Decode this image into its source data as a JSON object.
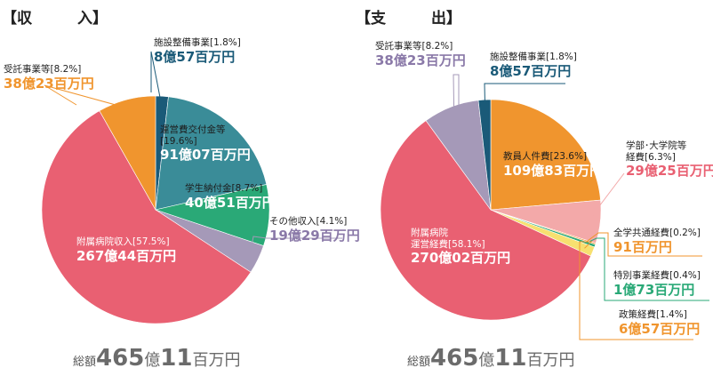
{
  "chart_data": [
    {
      "type": "pie",
      "title": "【収　　　入】",
      "total": {
        "prefix": "総額",
        "amount": "465",
        "unit1": "億",
        "amount2": "11",
        "unit2": "百万円"
      },
      "slices": [
        {
          "key": "shisetsu",
          "name": "施設整備事業[1.8%]",
          "percent": 1.8,
          "value_oku": 8,
          "value_man": 57,
          "value_text": "8億57百万円",
          "color": "#1a5a78"
        },
        {
          "key": "unei",
          "name": "運営費交付金等\n[19.6%]",
          "percent": 19.6,
          "value_oku": 91,
          "value_man": 7,
          "value_text": "91億07百万円",
          "color": "#3a8c98"
        },
        {
          "key": "gakusei",
          "name": "学生納付金[8.7%]",
          "percent": 8.7,
          "value_oku": 40,
          "value_man": 51,
          "value_text": "40億51百万円",
          "color": "#2aa977"
        },
        {
          "key": "sonota",
          "name": "その他収入[4.1%]",
          "percent": 4.1,
          "value_oku": 19,
          "value_man": 29,
          "value_text": "19億29百万円",
          "color": "#a599b8"
        },
        {
          "key": "fuzoku",
          "name": "附属病院収入[57.5%]",
          "percent": 57.5,
          "value_oku": 267,
          "value_man": 44,
          "value_text": "267億44百万円",
          "color": "#e96072"
        },
        {
          "key": "jutaku",
          "name": "受託事業等[8.2%]",
          "percent": 8.2,
          "value_oku": 38,
          "value_man": 23,
          "value_text": "38億23百万円",
          "color": "#f0952e"
        }
      ]
    },
    {
      "type": "pie",
      "title": "【支　　　出】",
      "total": {
        "prefix": "総額",
        "amount": "465",
        "unit1": "億",
        "amount2": "11",
        "unit2": "百万円"
      },
      "slices": [
        {
          "key": "kyoin",
          "name": "教員人件費[23.6%]",
          "percent": 23.6,
          "value_oku": 109,
          "value_man": 83,
          "value_text": "109億83百万円",
          "color": "#f0952e"
        },
        {
          "key": "gakubu",
          "name": "学部･大学院等\n経費[6.3%]",
          "percent": 6.3,
          "value_oku": 29,
          "value_man": 25,
          "value_text": "29億25百万円",
          "color": "#f3a9a9"
        },
        {
          "key": "zengaku",
          "name": "全学共通経費[0.2%]",
          "percent": 0.2,
          "value_oku": null,
          "value_man": 91,
          "value_text": "91百万円",
          "color": "#f0952e"
        },
        {
          "key": "tokubetsu",
          "name": "特別事業経費[0.4%]",
          "percent": 0.4,
          "value_oku": 1,
          "value_man": 73,
          "value_text": "1億73百万円",
          "color": "#2aa977"
        },
        {
          "key": "seisaku",
          "name": "政策経費[1.4%]",
          "percent": 1.4,
          "value_oku": 6,
          "value_man": 57,
          "value_text": "6億57百万円",
          "color": "#f7e070"
        },
        {
          "key": "fuzoku",
          "name": "附属病院\n運営経費[58.1%]",
          "percent": 58.1,
          "value_oku": 270,
          "value_man": 2,
          "value_text": "270億02百万円",
          "color": "#e96072"
        },
        {
          "key": "jutaku",
          "name": "受託事業等[8.2%]",
          "percent": 8.2,
          "value_oku": 38,
          "value_man": 23,
          "value_text": "38億23百万円",
          "color": "#a599b8"
        },
        {
          "key": "shisetsu",
          "name": "施設整備事業[1.8%]",
          "percent": 1.8,
          "value_oku": 8,
          "value_man": 57,
          "value_text": "8億57百万円",
          "color": "#1a5a78"
        }
      ]
    }
  ]
}
